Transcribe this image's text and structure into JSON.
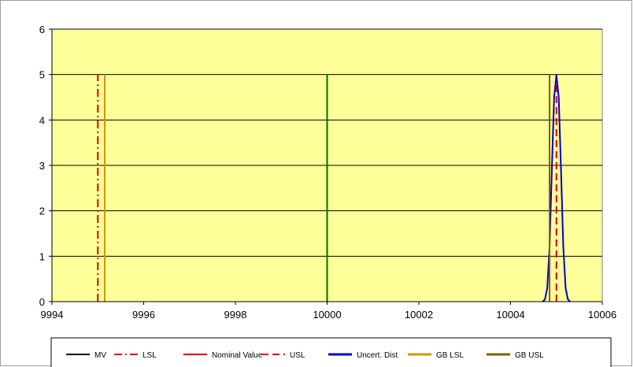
{
  "chart_data": {
    "type": "line",
    "title": "",
    "xlabel": "",
    "ylabel": "",
    "xlim": [
      9994,
      10006
    ],
    "ylim": [
      0,
      6
    ],
    "x_ticks": [
      9994,
      9996,
      9998,
      10000,
      10002,
      10004,
      10006
    ],
    "y_ticks": [
      0,
      1,
      2,
      3,
      4,
      5,
      6
    ],
    "grid": "horizontal",
    "plot_background": "#ffff99",
    "legend_position": "bottom",
    "series": [
      {
        "name": "MV",
        "kind": "vline",
        "x": 10000,
        "y": [
          0,
          5
        ],
        "color": "#000000",
        "dash": "solid"
      },
      {
        "name": "LSL",
        "kind": "vline",
        "x": 9995,
        "y": [
          0,
          5
        ],
        "color": "#dd0000",
        "dash": "dashdot"
      },
      {
        "name": "Nominal Value",
        "kind": "vline",
        "x": 10000,
        "y": [
          0,
          5
        ],
        "color": "#dd0000",
        "dash": "solid"
      },
      {
        "name": "USL",
        "kind": "vline",
        "x": 10005,
        "y": [
          0,
          5
        ],
        "color": "#dd0000",
        "dash": "dashed"
      },
      {
        "name": "Uncert. Dist",
        "kind": "curve",
        "color": "#0000cc",
        "dash": "solid",
        "x": [
          10004.7,
          10004.75,
          10004.8,
          10004.85,
          10004.9,
          10004.95,
          10005.0,
          10005.05,
          10005.1,
          10005.15,
          10005.2,
          10005.25,
          10005.3
        ],
        "y": [
          0,
          0.05,
          0.3,
          1.2,
          2.9,
          4.5,
          5.0,
          4.5,
          2.9,
          1.2,
          0.3,
          0.05,
          0
        ]
      },
      {
        "name": "GB LSL",
        "kind": "vline",
        "x": 9995.15,
        "y": [
          0,
          5
        ],
        "color": "#cc9900",
        "dash": "solid"
      },
      {
        "name": "GB USL",
        "kind": "vline",
        "x": 10004.85,
        "y": [
          0,
          5
        ],
        "color": "#806000",
        "dash": "solid"
      }
    ],
    "extra_lines": [
      {
        "x": 10000,
        "y": [
          0,
          5
        ],
        "color": "#007000"
      }
    ]
  }
}
